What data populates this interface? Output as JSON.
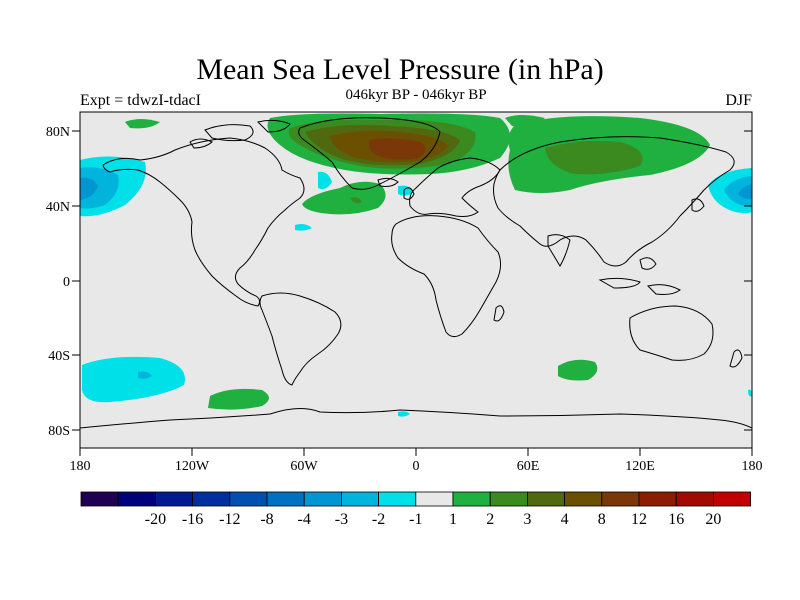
{
  "title": "Mean Sea Level Pressure (in hPa)",
  "left_label": "Expt = tdwzI-tdacI",
  "center_label": "046kyr BP - 046kyr BP",
  "right_label": "DJF",
  "axes": {
    "x_ticks": [
      "180",
      "120W",
      "60W",
      "0",
      "60E",
      "120E",
      "180"
    ],
    "y_ticks": [
      "80N",
      "40N",
      "0",
      "40S",
      "80S"
    ]
  },
  "colorbar": {
    "colors": [
      "#200050",
      "#00007a",
      "#001a8f",
      "#0030a0",
      "#0050b0",
      "#0070c0",
      "#0096d2",
      "#00b4dc",
      "#00e0e8",
      "#e8e8e8",
      "#20b040",
      "#3a8a20",
      "#506810",
      "#6a5000",
      "#7a3808",
      "#8c1e00",
      "#a00a00",
      "#c00000"
    ],
    "labels": [
      "-20",
      "-16",
      "-12",
      "-8",
      "-4",
      "-3",
      "-2",
      "-1",
      "1",
      "2",
      "3",
      "4",
      "8",
      "12",
      "16",
      "20"
    ]
  },
  "map": {
    "background": "#e8e8e8",
    "coastline_color": "#000000"
  }
}
